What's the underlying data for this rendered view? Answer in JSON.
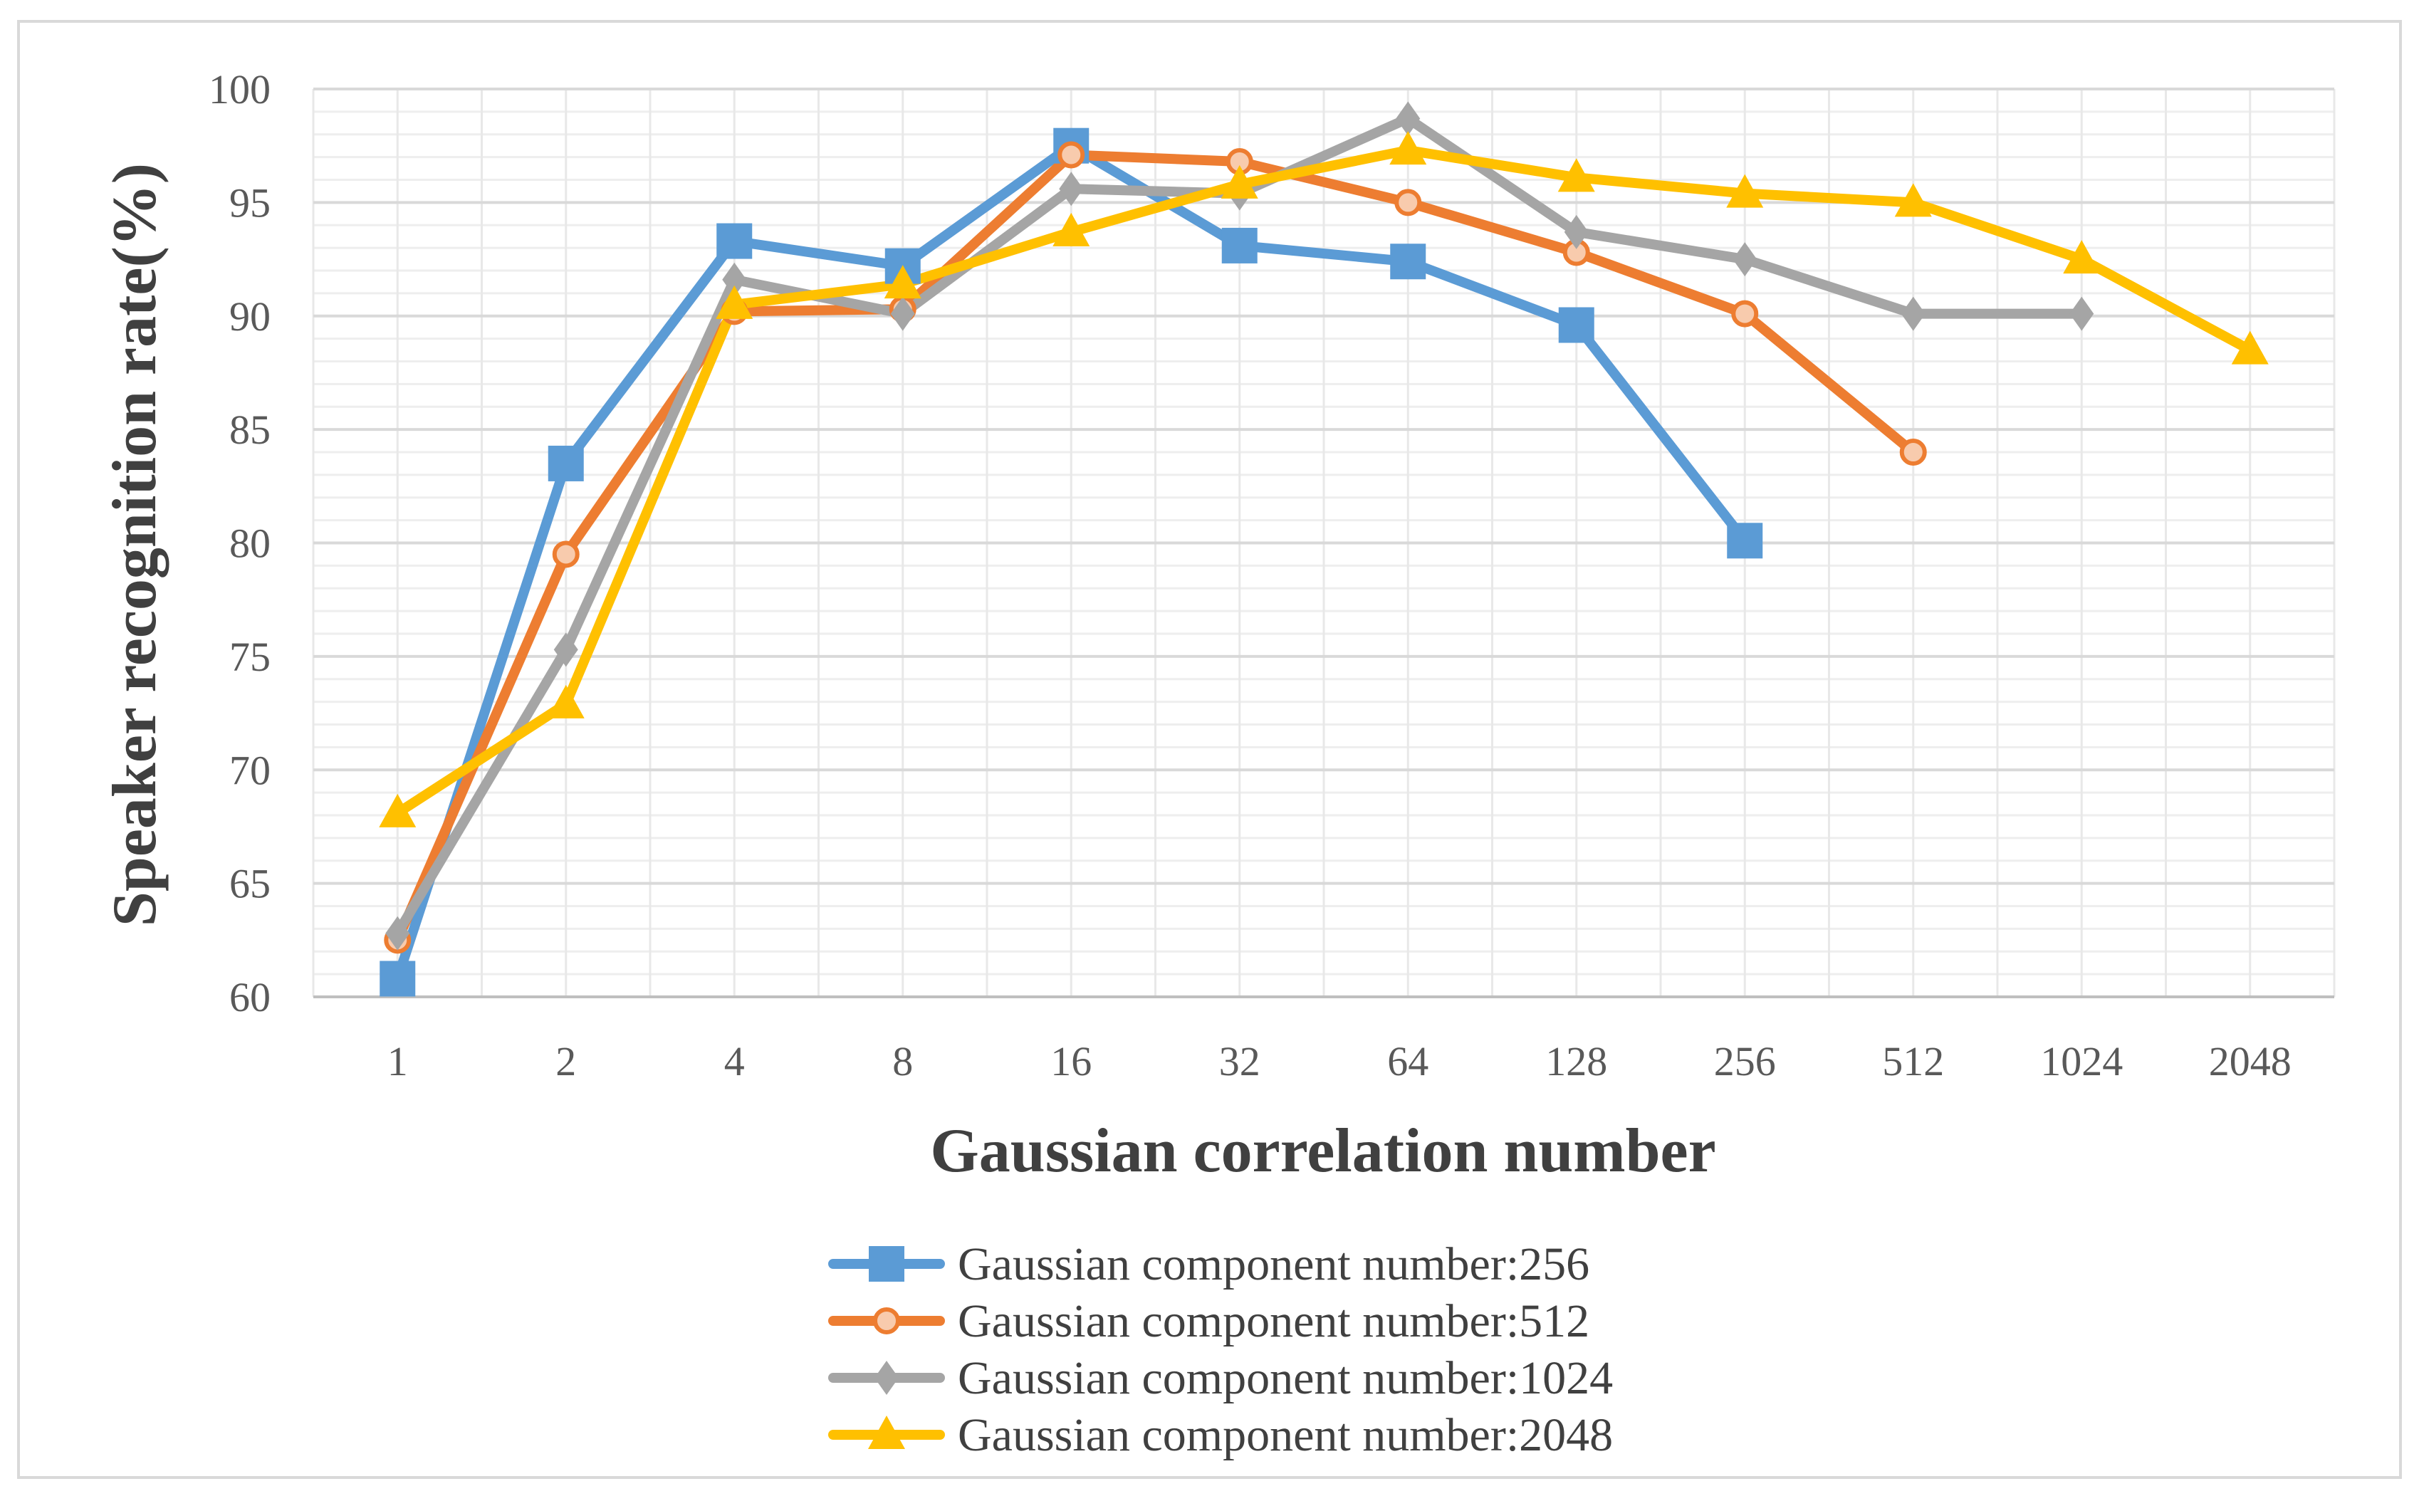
{
  "chart_data": {
    "type": "line",
    "title": "",
    "xlabel": "Gaussian correlation number",
    "ylabel": "Speaker recognition rate(%)",
    "categories": [
      "1",
      "2",
      "4",
      "8",
      "16",
      "32",
      "64",
      "128",
      "256",
      "512",
      "1024",
      "2048"
    ],
    "ylim": [
      60,
      100
    ],
    "yticks": [
      60,
      65,
      70,
      75,
      80,
      85,
      90,
      95,
      100
    ],
    "grid": true,
    "legend_position": "bottom",
    "series": [
      {
        "name": "Gaussian component number:256",
        "color": "#5b9bd5",
        "marker": "square",
        "values": [
          60.8,
          83.5,
          93.3,
          92.2,
          97.5,
          93.1,
          92.4,
          89.6,
          80.1,
          null,
          null,
          null
        ]
      },
      {
        "name": "Gaussian component number:512",
        "color": "#ed7d31",
        "marker": "circle",
        "values": [
          62.5,
          79.5,
          90.2,
          90.3,
          97.1,
          96.8,
          95.0,
          92.8,
          90.1,
          84.0,
          null,
          null
        ]
      },
      {
        "name": "Gaussian component number:1024",
        "color": "#a5a5a5",
        "marker": "diamond",
        "values": [
          62.8,
          75.3,
          91.6,
          90.1,
          95.6,
          95.4,
          98.7,
          93.7,
          92.5,
          90.1,
          90.1,
          null
        ]
      },
      {
        "name": "Gaussian component number:2048",
        "color": "#ffc000",
        "marker": "triangle",
        "values": [
          68.1,
          72.9,
          90.5,
          91.4,
          93.7,
          95.8,
          97.3,
          96.1,
          95.4,
          95.0,
          92.5,
          88.5
        ]
      }
    ]
  }
}
